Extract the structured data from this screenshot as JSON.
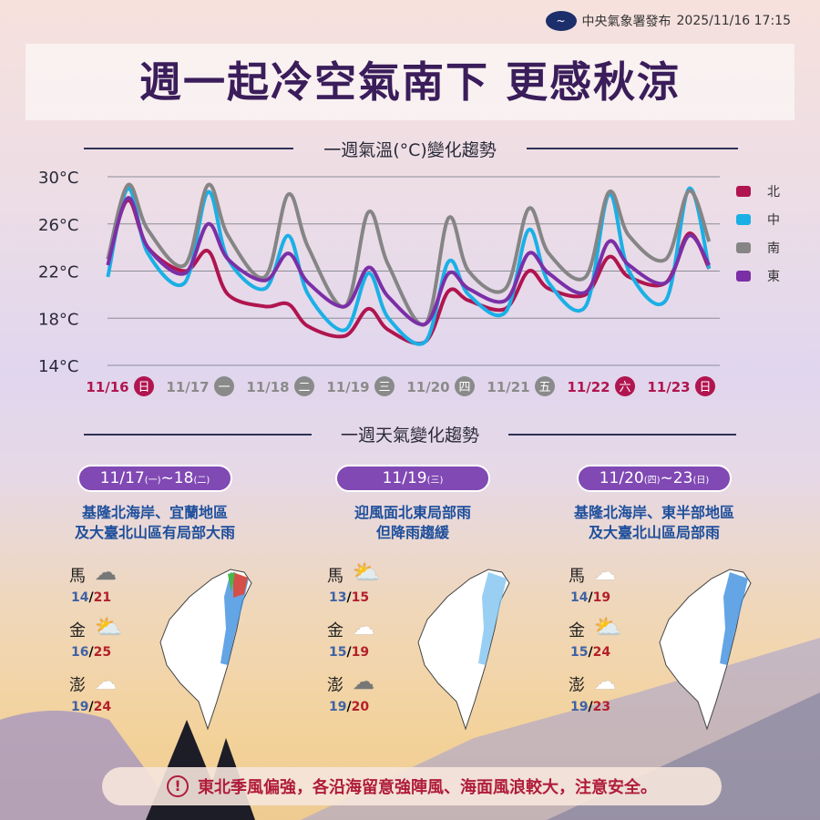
{
  "header": {
    "publisher": "中央氣象署發布",
    "datetime": "2025/11/16 17:15",
    "title": "週一起冷空氣南下 更感秋涼"
  },
  "sections": {
    "temp_title": "一週氣溫(°C)變化趨勢",
    "weather_title": "一週天氣變化趨勢"
  },
  "chart_data": {
    "type": "line",
    "title": "一週氣溫(°C)變化趨勢",
    "grid": true,
    "legend": "right",
    "ylim": [
      14,
      30
    ],
    "yticks": [
      "30°C",
      "26°C",
      "22°C",
      "18°C",
      "14°C"
    ],
    "ytick_values": [
      30,
      26,
      22,
      18,
      14
    ],
    "xticks": [
      {
        "date": "11/16",
        "day": "日",
        "color": "#b0154f"
      },
      {
        "date": "11/17",
        "day": "一",
        "color": "#8a8a8a"
      },
      {
        "date": "11/18",
        "day": "二",
        "color": "#8a8a8a"
      },
      {
        "date": "11/19",
        "day": "三",
        "color": "#8a8a8a"
      },
      {
        "date": "11/20",
        "day": "四",
        "color": "#8a8a8a"
      },
      {
        "date": "11/21",
        "day": "五",
        "color": "#8a8a8a"
      },
      {
        "date": "11/22",
        "day": "六",
        "color": "#b0154f"
      },
      {
        "date": "11/23",
        "day": "日",
        "color": "#b0154f"
      }
    ],
    "x": [
      "11/16 08:00",
      "11/16 14:00",
      "11/16 20:00",
      "11/17 07:00",
      "11/17 14:00",
      "11/17 20:00",
      "11/18 07:00",
      "11/18 14:00",
      "11/18 20:00",
      "11/19 07:00",
      "11/19 14:00",
      "11/19 20:00",
      "11/20 07:00",
      "11/20 14:00",
      "11/20 20:00",
      "11/21 07:00",
      "11/21 14:00",
      "11/21 20:00",
      "11/22 07:00",
      "11/22 14:00",
      "11/22 20:00",
      "11/23 07:00",
      "11/23 14:00",
      "11/23 20:00"
    ],
    "series": [
      {
        "name": "北",
        "color": "#b0154f",
        "values": [
          23,
          28,
          24,
          22,
          23.7,
          20,
          19,
          19.2,
          17.3,
          16.5,
          18.8,
          17,
          16,
          20.3,
          19.5,
          18.8,
          22,
          20.5,
          20,
          23.2,
          21.5,
          21,
          25.2,
          22.2
        ]
      },
      {
        "name": "中",
        "color": "#1ab0e6",
        "values": [
          21.5,
          29,
          23.5,
          21,
          28.7,
          23,
          20.5,
          25,
          20,
          17,
          21.8,
          18,
          16,
          22.8,
          20,
          18.5,
          25.5,
          21,
          19,
          28.5,
          22,
          19.5,
          29,
          22.2
        ]
      },
      {
        "name": "南",
        "color": "#858585",
        "values": [
          23,
          29.3,
          25.5,
          22.5,
          29.3,
          25,
          21.5,
          28.5,
          24,
          19,
          27,
          22.5,
          17.5,
          26.5,
          22,
          20.5,
          27.3,
          23.5,
          21.5,
          28.7,
          25,
          23,
          28.8,
          24.5
        ]
      },
      {
        "name": "東",
        "color": "#7b2fa6",
        "values": [
          22.5,
          28.2,
          24,
          21.8,
          26,
          23,
          21.2,
          23.5,
          21,
          19,
          22.3,
          19.8,
          17.5,
          21.8,
          20.5,
          19.5,
          23.5,
          21.8,
          20.2,
          24.5,
          22.5,
          21,
          25,
          22.5
        ]
      }
    ]
  },
  "panels": [
    {
      "range": "11/17",
      "range_day": "(一)",
      "range_end": "~18",
      "range_end_day": "(二)",
      "line1": "基隆北海岸、宜蘭地區",
      "line2": "及大臺北山區有局部大雨",
      "islands": [
        {
          "name": "馬",
          "icon": "cloudy-icon",
          "low": "14",
          "high": "21"
        },
        {
          "name": "金",
          "icon": "partly-sunny-icon",
          "low": "16",
          "high": "25"
        },
        {
          "name": "澎",
          "icon": "cloud-icon",
          "low": "19",
          "high": "24"
        }
      ]
    },
    {
      "range": "11/19",
      "range_day": "(三)",
      "range_end": "",
      "range_end_day": "",
      "line1": "迎風面北東局部雨",
      "line2": "但降雨趨緩",
      "islands": [
        {
          "name": "馬",
          "icon": "partly-sunny-icon",
          "low": "13",
          "high": "15"
        },
        {
          "name": "金",
          "icon": "cloud-icon",
          "low": "15",
          "high": "19"
        },
        {
          "name": "澎",
          "icon": "cloudy-icon",
          "low": "19",
          "high": "20"
        }
      ]
    },
    {
      "range": "11/20",
      "range_day": "(四)",
      "range_end": "~23",
      "range_end_day": "(日)",
      "line1": "基隆北海岸、東半部地區",
      "line2": "及大臺北山區局部雨",
      "islands": [
        {
          "name": "馬",
          "icon": "cloud-icon",
          "low": "14",
          "high": "19"
        },
        {
          "name": "金",
          "icon": "partly-sunny-icon",
          "low": "15",
          "high": "24"
        },
        {
          "name": "澎",
          "icon": "cloud-icon",
          "low": "19",
          "high": "23"
        }
      ]
    }
  ],
  "warning": {
    "icon": "!",
    "text": "東北季風偏強，各沿海留意強陣風、海面風浪較大，注意安全。"
  }
}
